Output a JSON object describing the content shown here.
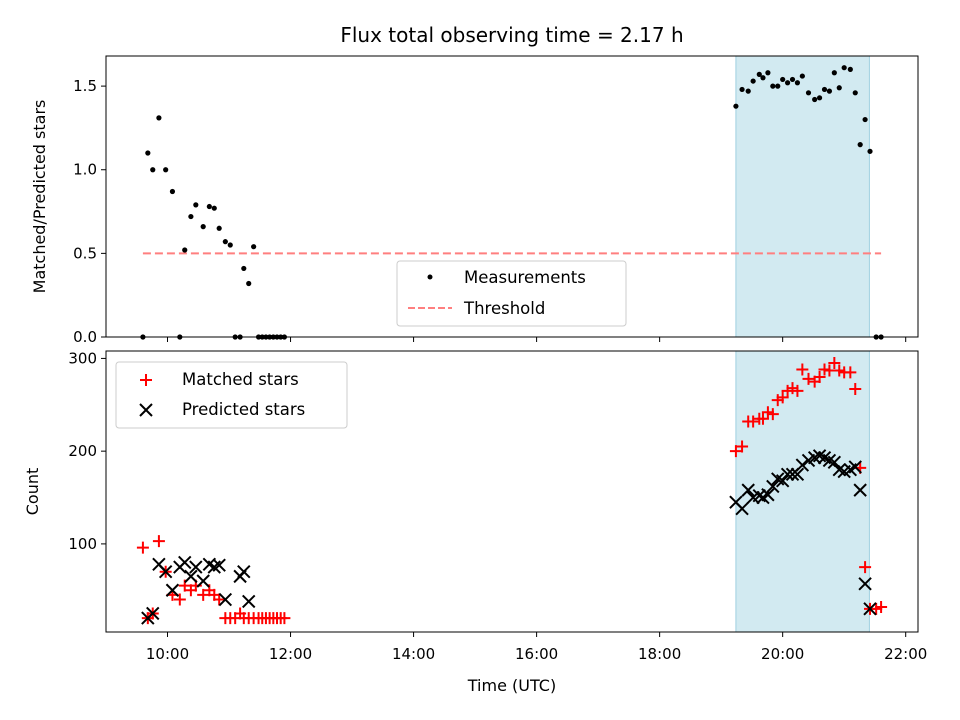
{
  "chart_data": [
    {
      "type": "scatter",
      "title": "Flux total observing time = 2.17 h",
      "ylabel": "Matched/Predicted stars",
      "xlabel": "",
      "x_unit": "hours UTC",
      "xlim": [
        9.0,
        22.2
      ],
      "ylim": [
        0.0,
        1.68
      ],
      "yticks": [
        0.0,
        0.5,
        1.0,
        1.5
      ],
      "ytick_labels": [
        "0.0",
        "0.5",
        "1.0",
        "1.5"
      ],
      "highlight_span": {
        "x0": 19.24,
        "x1": 21.41,
        "color": "#add8e6"
      },
      "threshold": {
        "name": "Threshold",
        "y": 0.5,
        "x0": 9.6,
        "x1": 21.6,
        "color": "#ff7f7f",
        "style": "dashed"
      },
      "legend": {
        "placement": "lower center",
        "entries": [
          "Measurements",
          "Threshold"
        ]
      },
      "series": [
        {
          "name": "Measurements",
          "color": "#000000",
          "marker": "dot",
          "x": [
            9.6,
            9.68,
            9.76,
            9.86,
            9.97,
            10.08,
            10.2,
            10.28,
            10.38,
            10.46,
            10.58,
            10.68,
            10.76,
            10.84,
            10.94,
            11.02,
            11.1,
            11.18,
            11.24,
            11.32,
            11.4,
            11.48,
            11.54,
            11.6,
            11.66,
            11.72,
            11.78,
            11.84,
            11.9,
            19.24,
            19.34,
            19.44,
            19.52,
            19.62,
            19.68,
            19.76,
            19.84,
            19.92,
            20.0,
            20.08,
            20.16,
            20.24,
            20.32,
            20.42,
            20.52,
            20.6,
            20.68,
            20.76,
            20.84,
            20.92,
            21.0,
            21.1,
            21.18,
            21.26,
            21.34,
            21.42,
            21.52,
            21.6
          ],
          "y": [
            0.0,
            1.1,
            1.0,
            1.31,
            1.0,
            0.87,
            0.0,
            0.52,
            0.72,
            0.79,
            0.66,
            0.78,
            0.77,
            0.65,
            0.57,
            0.55,
            0.0,
            0.0,
            0.41,
            0.32,
            0.54,
            0.0,
            0.0,
            0.0,
            0.0,
            0.0,
            0.0,
            0.0,
            0.0,
            1.38,
            1.48,
            1.47,
            1.53,
            1.57,
            1.55,
            1.58,
            1.5,
            1.5,
            1.54,
            1.52,
            1.54,
            1.52,
            1.56,
            1.46,
            1.42,
            1.43,
            1.48,
            1.47,
            1.58,
            1.49,
            1.61,
            1.6,
            1.46,
            1.15,
            1.3,
            1.11,
            0.0,
            0.0
          ]
        }
      ]
    },
    {
      "type": "scatter",
      "title": "",
      "ylabel": "Count",
      "xlabel": "Time (UTC)",
      "x_unit": "hours UTC",
      "xlim": [
        9.0,
        22.2
      ],
      "ylim": [
        5,
        308
      ],
      "yticks": [
        100,
        200,
        300
      ],
      "ytick_labels": [
        "100",
        "200",
        "300"
      ],
      "xticks": [
        10,
        12,
        14,
        16,
        18,
        20,
        22
      ],
      "xtick_labels": [
        "10:00",
        "12:00",
        "14:00",
        "16:00",
        "18:00",
        "20:00",
        "22:00"
      ],
      "highlight_span": {
        "x0": 19.24,
        "x1": 21.41,
        "color": "#add8e6"
      },
      "legend": {
        "placement": "upper left",
        "entries": [
          "Matched stars",
          "Predicted stars"
        ]
      },
      "series": [
        {
          "name": "Matched stars",
          "color": "#ff0000",
          "marker": "plus",
          "x": [
            9.6,
            9.68,
            9.76,
            9.86,
            9.97,
            10.08,
            10.2,
            10.28,
            10.38,
            10.46,
            10.58,
            10.68,
            10.76,
            10.84,
            10.94,
            11.02,
            11.1,
            11.18,
            11.24,
            11.32,
            11.4,
            11.48,
            11.54,
            11.6,
            11.66,
            11.72,
            11.78,
            11.84,
            11.9,
            19.24,
            19.34,
            19.44,
            19.52,
            19.62,
            19.68,
            19.76,
            19.84,
            19.92,
            20.0,
            20.08,
            20.16,
            20.24,
            20.32,
            20.42,
            20.52,
            20.6,
            20.68,
            20.76,
            20.84,
            20.92,
            21.0,
            21.1,
            21.18,
            21.26,
            21.34,
            21.42,
            21.52,
            21.6
          ],
          "y": [
            96,
            20,
            25,
            103,
            70,
            45,
            40,
            55,
            50,
            55,
            45,
            50,
            45,
            40,
            20,
            20,
            20,
            25,
            20,
            20,
            20,
            20,
            20,
            20,
            20,
            20,
            20,
            20,
            20,
            200,
            205,
            232,
            232,
            235,
            235,
            242,
            240,
            255,
            258,
            265,
            268,
            265,
            288,
            278,
            275,
            280,
            288,
            287,
            295,
            287,
            285,
            285,
            267,
            182,
            75,
            30,
            30,
            32
          ]
        },
        {
          "name": "Predicted stars",
          "color": "#000000",
          "marker": "x",
          "x": [
            9.68,
            9.76,
            9.86,
            9.97,
            10.08,
            10.2,
            10.28,
            10.38,
            10.46,
            10.58,
            10.68,
            10.76,
            10.84,
            10.94,
            11.18,
            11.24,
            11.32,
            19.24,
            19.34,
            19.44,
            19.52,
            19.62,
            19.68,
            19.76,
            19.84,
            19.92,
            20.0,
            20.08,
            20.16,
            20.24,
            20.32,
            20.42,
            20.52,
            20.6,
            20.68,
            20.76,
            20.84,
            20.92,
            21.0,
            21.1,
            21.18,
            21.26,
            21.34,
            21.42
          ],
          "y": [
            20,
            25,
            78,
            70,
            50,
            75,
            80,
            65,
            75,
            60,
            78,
            75,
            77,
            40,
            65,
            70,
            38,
            145,
            138,
            158,
            150,
            152,
            150,
            153,
            162,
            170,
            168,
            175,
            175,
            175,
            185,
            190,
            193,
            195,
            193,
            190,
            188,
            180,
            178,
            180,
            183,
            158,
            57,
            30
          ]
        }
      ]
    }
  ]
}
